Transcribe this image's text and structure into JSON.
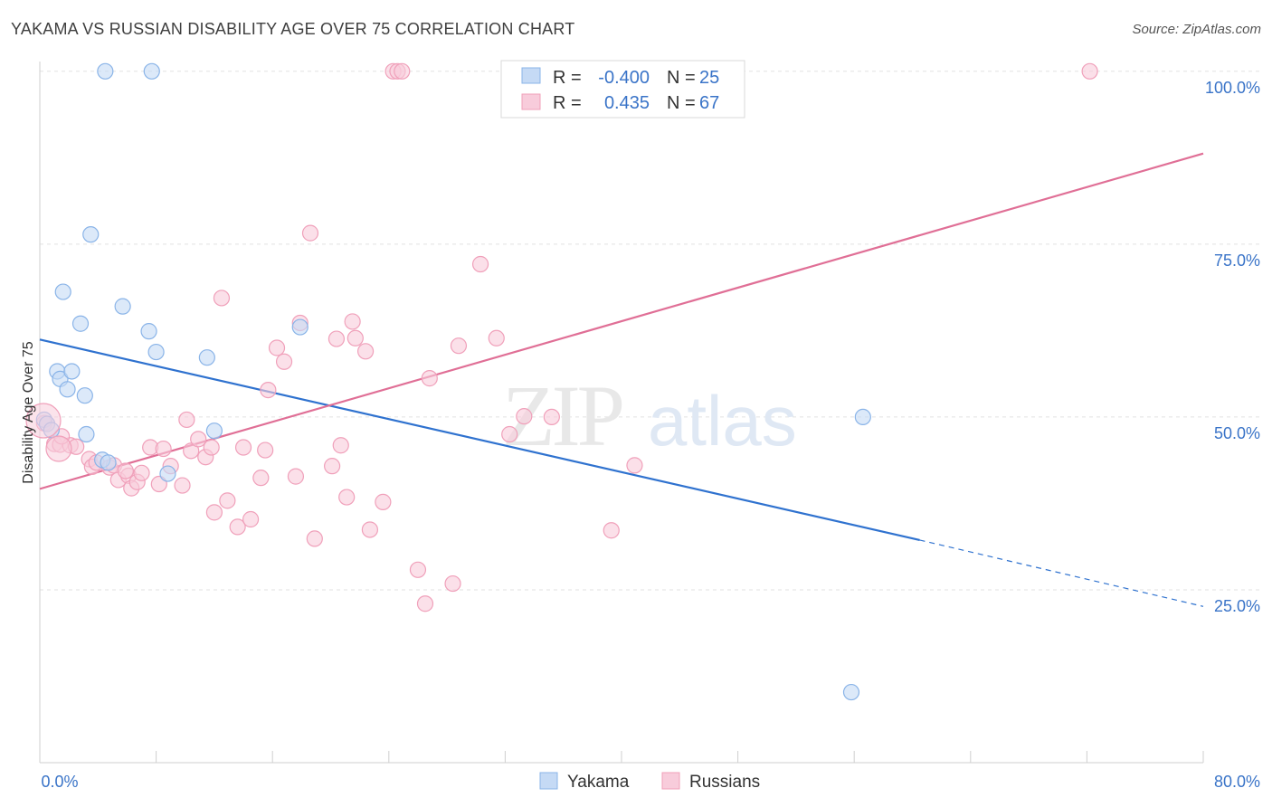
{
  "chart_data": {
    "type": "scatter",
    "title": "YAKAMA VS RUSSIAN DISABILITY AGE OVER 75 CORRELATION CHART",
    "source": "Source: ZipAtlas.com",
    "ylabel": "Disability Age Over 75",
    "xlim": [
      0,
      80
    ],
    "ylim": [
      0,
      104
    ],
    "x_tick_labels": {
      "left": "0.0%",
      "right": "80.0%"
    },
    "y_ticks": [
      25,
      50,
      75,
      100
    ],
    "y_tick_labels": [
      "25.0%",
      "50.0%",
      "75.0%",
      "100.0%"
    ],
    "grid": true,
    "legend_position": "top-center",
    "watermark": {
      "zip": "ZIP",
      "atlas": "atlas"
    },
    "stats": [
      {
        "r_label": "R =",
        "r": "-0.400",
        "n_label": "N =",
        "n": "25"
      },
      {
        "r_label": "R =",
        "r": "0.435",
        "n_label": "N =",
        "n": "67"
      }
    ],
    "series": [
      {
        "name": "Yakama",
        "color": "#8ab4e8",
        "fill": "#c5daf5",
        "line_color": "#2f72cf",
        "trend": {
          "x0": 0,
          "y0": 61.2,
          "x1": 60.5,
          "y1": 32.2,
          "dash_to_x": 80,
          "dash_to_y": 22.6
        },
        "points": [
          [
            0.3,
            49.6
          ],
          [
            0.5,
            49.0
          ],
          [
            0.8,
            48.1
          ],
          [
            1.2,
            56.6
          ],
          [
            1.4,
            55.5
          ],
          [
            1.6,
            68.1
          ],
          [
            1.9,
            54.0
          ],
          [
            2.2,
            56.6
          ],
          [
            2.8,
            63.5
          ],
          [
            3.1,
            53.1
          ],
          [
            3.2,
            47.5
          ],
          [
            3.5,
            76.4
          ],
          [
            4.3,
            43.8
          ],
          [
            4.5,
            100.0
          ],
          [
            4.7,
            43.4
          ],
          [
            5.7,
            66.0
          ],
          [
            7.5,
            62.4
          ],
          [
            7.7,
            100.0
          ],
          [
            8.0,
            59.4
          ],
          [
            8.8,
            41.8
          ],
          [
            11.5,
            58.6
          ],
          [
            12.0,
            48.0
          ],
          [
            17.9,
            63.0
          ],
          [
            56.6,
            50.0
          ],
          [
            55.8,
            10.2
          ]
        ]
      },
      {
        "name": "Russians",
        "color": "#f0a0ba",
        "fill": "#f8ccdb",
        "line_color": "#e06f96",
        "trend": {
          "x0": 0,
          "y0": 39.6,
          "x1": 80,
          "y1": 88.1
        },
        "points": [
          [
            0.3,
            49.1
          ],
          [
            1.0,
            46.1
          ],
          [
            1.4,
            46.0
          ],
          [
            2.1,
            45.9
          ],
          [
            3.4,
            43.9
          ],
          [
            3.6,
            42.8
          ],
          [
            3.9,
            43.4
          ],
          [
            4.8,
            42.7
          ],
          [
            5.1,
            43.0
          ],
          [
            5.4,
            40.9
          ],
          [
            6.1,
            41.5
          ],
          [
            6.3,
            39.7
          ],
          [
            6.7,
            40.6
          ],
          [
            7.0,
            41.9
          ],
          [
            7.6,
            45.6
          ],
          [
            8.2,
            40.3
          ],
          [
            8.5,
            45.4
          ],
          [
            9.0,
            42.9
          ],
          [
            9.8,
            40.1
          ],
          [
            10.1,
            49.6
          ],
          [
            10.4,
            45.1
          ],
          [
            10.9,
            46.8
          ],
          [
            11.4,
            44.2
          ],
          [
            11.8,
            45.6
          ],
          [
            12.0,
            36.2
          ],
          [
            12.5,
            67.2
          ],
          [
            12.9,
            37.9
          ],
          [
            13.6,
            34.1
          ],
          [
            14.0,
            45.6
          ],
          [
            14.5,
            35.2
          ],
          [
            15.2,
            41.2
          ],
          [
            15.5,
            45.2
          ],
          [
            15.7,
            53.9
          ],
          [
            16.3,
            60.0
          ],
          [
            16.8,
            58.0
          ],
          [
            17.6,
            41.4
          ],
          [
            17.9,
            63.6
          ],
          [
            18.6,
            76.6
          ],
          [
            18.9,
            32.4
          ],
          [
            20.1,
            42.9
          ],
          [
            20.4,
            61.3
          ],
          [
            20.7,
            45.9
          ],
          [
            21.1,
            38.4
          ],
          [
            21.5,
            63.8
          ],
          [
            21.7,
            61.4
          ],
          [
            22.4,
            59.5
          ],
          [
            22.7,
            33.7
          ],
          [
            23.6,
            37.7
          ],
          [
            24.3,
            100.0
          ],
          [
            24.6,
            100.0
          ],
          [
            24.9,
            100.0
          ],
          [
            26.0,
            27.9
          ],
          [
            26.5,
            23.0
          ],
          [
            26.8,
            55.6
          ],
          [
            28.4,
            25.9
          ],
          [
            28.8,
            60.3
          ],
          [
            30.3,
            72.1
          ],
          [
            31.4,
            61.4
          ],
          [
            32.3,
            47.5
          ],
          [
            33.3,
            50.1
          ],
          [
            35.2,
            50.0
          ],
          [
            39.3,
            33.6
          ],
          [
            40.9,
            43.0
          ],
          [
            72.2,
            100.0
          ],
          [
            1.5,
            47.2
          ],
          [
            2.5,
            45.7
          ],
          [
            5.9,
            42.2
          ]
        ]
      }
    ]
  }
}
